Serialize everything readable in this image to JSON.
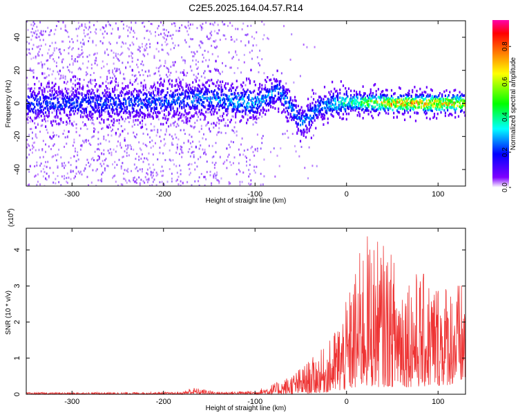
{
  "title": "C2E5.2025.164.04.57.R14",
  "chart_data": [
    {
      "type": "heatmap",
      "xlabel": "Height of straight line (km)",
      "ylabel": "Frequency (Hz)",
      "xlim": [
        -350,
        130
      ],
      "ylim": [
        -50,
        50
      ],
      "xticks": [
        -300,
        -200,
        -100,
        0,
        100
      ],
      "yticks": [
        -40,
        -20,
        0,
        20,
        40
      ],
      "colorbar": {
        "label": "Normalized spectral amplitude",
        "range": [
          0,
          0.95
        ],
        "ticks": [
          "0.0",
          "0.2",
          "0.4",
          "0.6",
          "0.8"
        ],
        "colormap": [
          "#ffffff",
          "#7f00ff",
          "#0000ff",
          "#00ffff",
          "#00ff00",
          "#ffff00",
          "#ff8000",
          "#ff0000",
          "#ff00aa"
        ]
      },
      "ridge": [
        {
          "x": -350,
          "f": 0,
          "amp": 0.25
        },
        {
          "x": -250,
          "f": 0,
          "amp": 0.25
        },
        {
          "x": -150,
          "f": 3,
          "amp": 0.3
        },
        {
          "x": -100,
          "f": 0,
          "amp": 0.35
        },
        {
          "x": -75,
          "f": 8,
          "amp": 0.3
        },
        {
          "x": -50,
          "f": -12,
          "amp": 0.3
        },
        {
          "x": -30,
          "f": -2,
          "amp": 0.3
        },
        {
          "x": 0,
          "f": 1,
          "amp": 0.45
        },
        {
          "x": 50,
          "f": 0,
          "amp": 0.8
        },
        {
          "x": 130,
          "f": 0,
          "amp": 0.75
        }
      ]
    },
    {
      "type": "line",
      "xlabel": "Height of straight line (km)",
      "ylabel": "SNR (10 * v/v)",
      "yscale_label": "(x10",
      "yscale_exp": "4",
      "xlim": [
        -350,
        130
      ],
      "ylim": [
        0,
        4.6
      ],
      "xticks": [
        -300,
        -200,
        -100,
        0,
        100
      ],
      "yticks": [
        0,
        1,
        2,
        3,
        4
      ],
      "color": "#ee3333",
      "envelope": [
        {
          "x": -350,
          "low": 0.0,
          "high": 0.05
        },
        {
          "x": -180,
          "low": 0.0,
          "high": 0.06
        },
        {
          "x": -170,
          "low": 0.0,
          "high": 0.2
        },
        {
          "x": -140,
          "low": 0.0,
          "high": 0.07
        },
        {
          "x": -100,
          "low": 0.0,
          "high": 0.1
        },
        {
          "x": -70,
          "low": 0.0,
          "high": 0.4
        },
        {
          "x": -50,
          "low": 0.0,
          "high": 0.75
        },
        {
          "x": -20,
          "low": 0.05,
          "high": 1.4
        },
        {
          "x": 0,
          "low": 0.1,
          "high": 2.6
        },
        {
          "x": 20,
          "low": 0.2,
          "high": 4.5
        },
        {
          "x": 40,
          "low": 0.2,
          "high": 4.2
        },
        {
          "x": 60,
          "low": 0.2,
          "high": 3.6
        },
        {
          "x": 90,
          "low": 0.2,
          "high": 3.3
        },
        {
          "x": 130,
          "low": 0.3,
          "high": 3.1
        }
      ]
    }
  ]
}
